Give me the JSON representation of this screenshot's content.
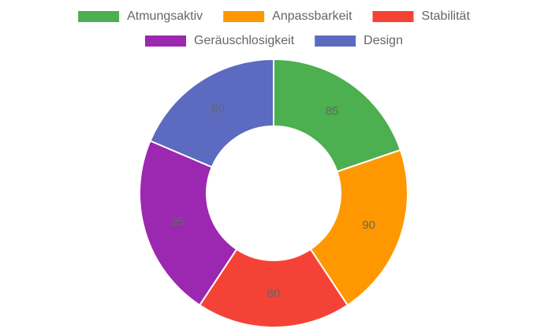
{
  "chart_data": {
    "type": "doughnut",
    "categories": [
      "Atmungsaktiv",
      "Anpassbarkeit",
      "Stabilität",
      "Geräuschlosigkeit",
      "Design"
    ],
    "values": [
      85,
      90,
      80,
      95,
      80
    ],
    "colors": [
      "#4caf50",
      "#ff9800",
      "#f44336",
      "#9c27b0",
      "#5c6bc0"
    ],
    "legend": "top"
  }
}
